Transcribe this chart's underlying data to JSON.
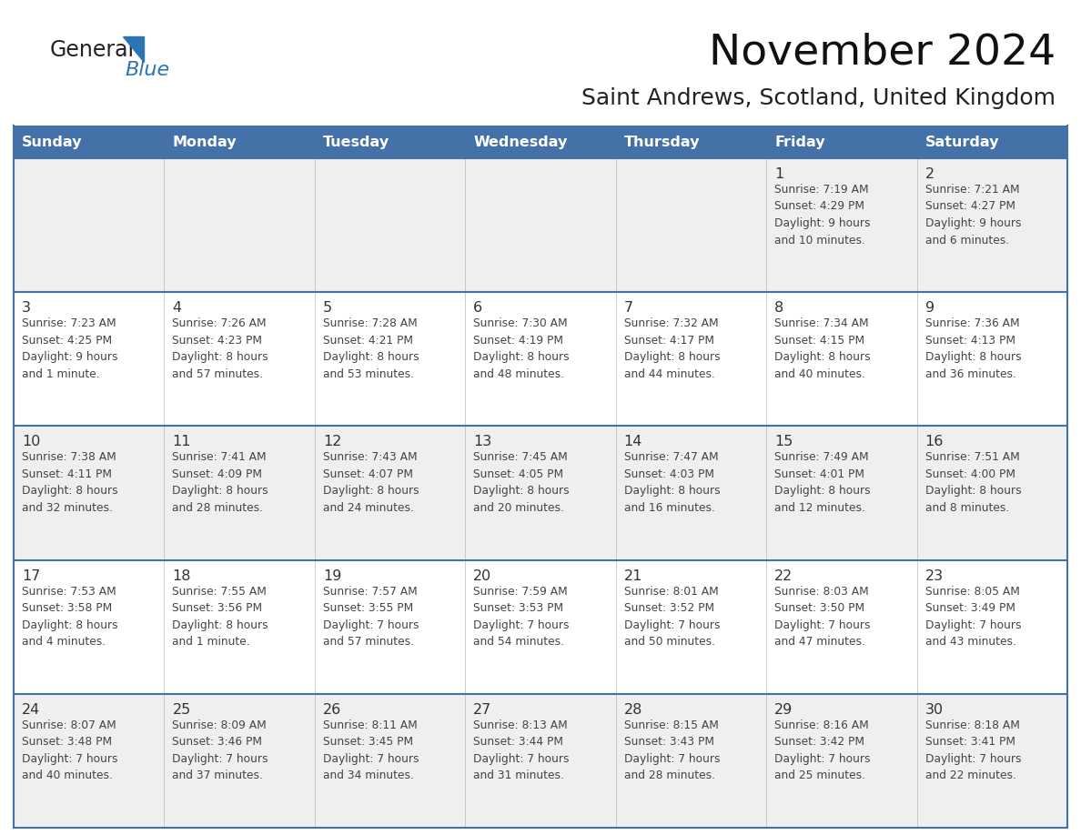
{
  "title": "November 2024",
  "subtitle": "Saint Andrews, Scotland, United Kingdom",
  "days_of_week": [
    "Sunday",
    "Monday",
    "Tuesday",
    "Wednesday",
    "Thursday",
    "Friday",
    "Saturday"
  ],
  "header_bg": "#4472A8",
  "header_text": "#FFFFFF",
  "cell_bg_odd": "#EFEFEF",
  "cell_bg_even": "#FFFFFF",
  "border_color": "#4472A8",
  "text_color": "#333333",
  "day_num_color": "#333333",
  "logo_general_color": "#222222",
  "logo_blue_color": "#2E74B5",
  "weeks": [
    [
      {
        "day": null,
        "info": null
      },
      {
        "day": null,
        "info": null
      },
      {
        "day": null,
        "info": null
      },
      {
        "day": null,
        "info": null
      },
      {
        "day": null,
        "info": null
      },
      {
        "day": 1,
        "info": "Sunrise: 7:19 AM\nSunset: 4:29 PM\nDaylight: 9 hours\nand 10 minutes."
      },
      {
        "day": 2,
        "info": "Sunrise: 7:21 AM\nSunset: 4:27 PM\nDaylight: 9 hours\nand 6 minutes."
      }
    ],
    [
      {
        "day": 3,
        "info": "Sunrise: 7:23 AM\nSunset: 4:25 PM\nDaylight: 9 hours\nand 1 minute."
      },
      {
        "day": 4,
        "info": "Sunrise: 7:26 AM\nSunset: 4:23 PM\nDaylight: 8 hours\nand 57 minutes."
      },
      {
        "day": 5,
        "info": "Sunrise: 7:28 AM\nSunset: 4:21 PM\nDaylight: 8 hours\nand 53 minutes."
      },
      {
        "day": 6,
        "info": "Sunrise: 7:30 AM\nSunset: 4:19 PM\nDaylight: 8 hours\nand 48 minutes."
      },
      {
        "day": 7,
        "info": "Sunrise: 7:32 AM\nSunset: 4:17 PM\nDaylight: 8 hours\nand 44 minutes."
      },
      {
        "day": 8,
        "info": "Sunrise: 7:34 AM\nSunset: 4:15 PM\nDaylight: 8 hours\nand 40 minutes."
      },
      {
        "day": 9,
        "info": "Sunrise: 7:36 AM\nSunset: 4:13 PM\nDaylight: 8 hours\nand 36 minutes."
      }
    ],
    [
      {
        "day": 10,
        "info": "Sunrise: 7:38 AM\nSunset: 4:11 PM\nDaylight: 8 hours\nand 32 minutes."
      },
      {
        "day": 11,
        "info": "Sunrise: 7:41 AM\nSunset: 4:09 PM\nDaylight: 8 hours\nand 28 minutes."
      },
      {
        "day": 12,
        "info": "Sunrise: 7:43 AM\nSunset: 4:07 PM\nDaylight: 8 hours\nand 24 minutes."
      },
      {
        "day": 13,
        "info": "Sunrise: 7:45 AM\nSunset: 4:05 PM\nDaylight: 8 hours\nand 20 minutes."
      },
      {
        "day": 14,
        "info": "Sunrise: 7:47 AM\nSunset: 4:03 PM\nDaylight: 8 hours\nand 16 minutes."
      },
      {
        "day": 15,
        "info": "Sunrise: 7:49 AM\nSunset: 4:01 PM\nDaylight: 8 hours\nand 12 minutes."
      },
      {
        "day": 16,
        "info": "Sunrise: 7:51 AM\nSunset: 4:00 PM\nDaylight: 8 hours\nand 8 minutes."
      }
    ],
    [
      {
        "day": 17,
        "info": "Sunrise: 7:53 AM\nSunset: 3:58 PM\nDaylight: 8 hours\nand 4 minutes."
      },
      {
        "day": 18,
        "info": "Sunrise: 7:55 AM\nSunset: 3:56 PM\nDaylight: 8 hours\nand 1 minute."
      },
      {
        "day": 19,
        "info": "Sunrise: 7:57 AM\nSunset: 3:55 PM\nDaylight: 7 hours\nand 57 minutes."
      },
      {
        "day": 20,
        "info": "Sunrise: 7:59 AM\nSunset: 3:53 PM\nDaylight: 7 hours\nand 54 minutes."
      },
      {
        "day": 21,
        "info": "Sunrise: 8:01 AM\nSunset: 3:52 PM\nDaylight: 7 hours\nand 50 minutes."
      },
      {
        "day": 22,
        "info": "Sunrise: 8:03 AM\nSunset: 3:50 PM\nDaylight: 7 hours\nand 47 minutes."
      },
      {
        "day": 23,
        "info": "Sunrise: 8:05 AM\nSunset: 3:49 PM\nDaylight: 7 hours\nand 43 minutes."
      }
    ],
    [
      {
        "day": 24,
        "info": "Sunrise: 8:07 AM\nSunset: 3:48 PM\nDaylight: 7 hours\nand 40 minutes."
      },
      {
        "day": 25,
        "info": "Sunrise: 8:09 AM\nSunset: 3:46 PM\nDaylight: 7 hours\nand 37 minutes."
      },
      {
        "day": 26,
        "info": "Sunrise: 8:11 AM\nSunset: 3:45 PM\nDaylight: 7 hours\nand 34 minutes."
      },
      {
        "day": 27,
        "info": "Sunrise: 8:13 AM\nSunset: 3:44 PM\nDaylight: 7 hours\nand 31 minutes."
      },
      {
        "day": 28,
        "info": "Sunrise: 8:15 AM\nSunset: 3:43 PM\nDaylight: 7 hours\nand 28 minutes."
      },
      {
        "day": 29,
        "info": "Sunrise: 8:16 AM\nSunset: 3:42 PM\nDaylight: 7 hours\nand 25 minutes."
      },
      {
        "day": 30,
        "info": "Sunrise: 8:18 AM\nSunset: 3:41 PM\nDaylight: 7 hours\nand 22 minutes."
      }
    ]
  ]
}
